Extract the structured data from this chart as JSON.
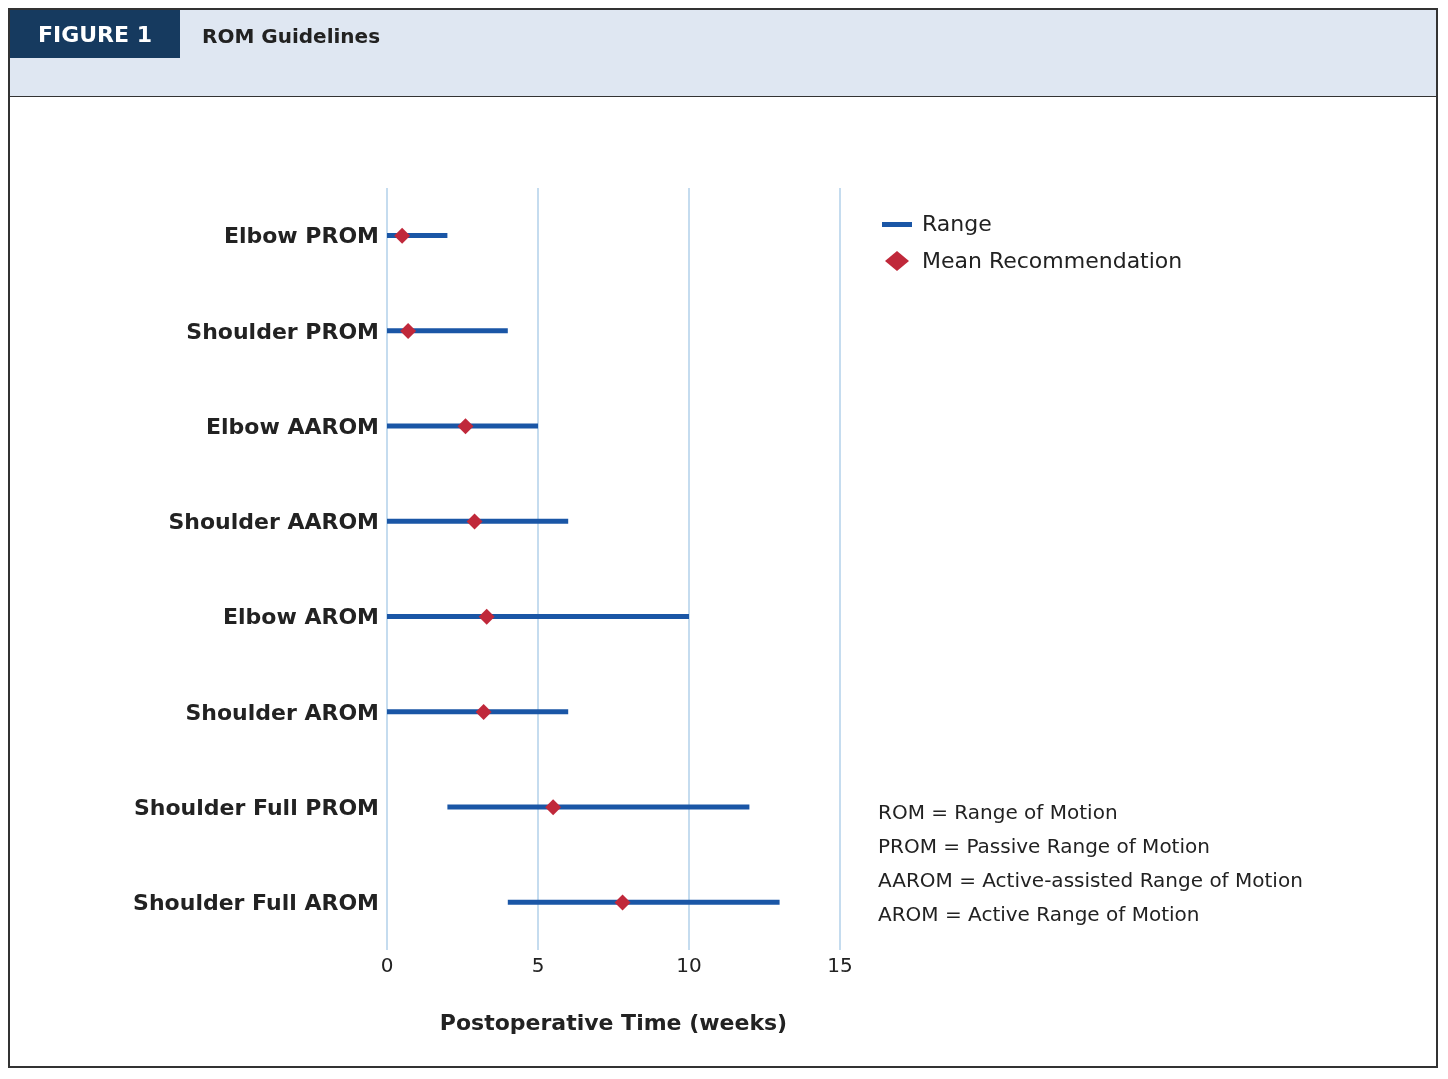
{
  "chart_data": {
    "type": "bar",
    "orientation": "horizontal",
    "title": "ROM Guidelines",
    "subtitle": "FIGURE 1",
    "xlabel": "Postoperative Time (weeks)",
    "categories": [
      "Elbow PROM",
      "Shoulder PROM",
      "Elbow AAROM",
      "Shoulder AAROM",
      "Elbow AROM",
      "Shoulder AROM",
      "Shoulder Full PROM",
      "Shoulder Full AROM"
    ],
    "series": [
      {
        "name": "Range",
        "color": "#1a56a6",
        "base": [
          0,
          0,
          0,
          0,
          0,
          0,
          2,
          4
        ],
        "values": [
          2,
          4,
          5,
          6,
          10,
          6,
          10,
          9
        ]
      },
      {
        "name": "Mean Recommendation",
        "type": "scatter",
        "color": "#c0283a",
        "marker": "diamond",
        "values": [
          0.5,
          0.7,
          2.6,
          2.9,
          3.3,
          3.2,
          5.5,
          7.8
        ]
      }
    ],
    "xlim": [
      0,
      15
    ],
    "xticks": [
      0,
      5,
      10,
      15
    ],
    "grid": "x",
    "legend": "top right",
    "annotations": [
      "ROM = Range of Motion",
      "PROM = Passive Range of Motion",
      "AAROM = Active-assisted Range of Motion",
      "AROM = Active Range of Motion"
    ]
  }
}
